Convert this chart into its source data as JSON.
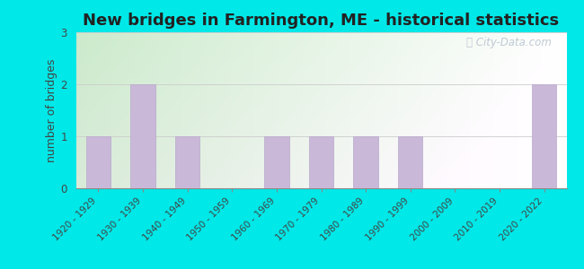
{
  "title": "New bridges in Farmington, ME - historical statistics",
  "categories": [
    "1920 - 1929",
    "1930 - 1939",
    "1940 - 1949",
    "1950 - 1959",
    "1960 - 1969",
    "1970 - 1979",
    "1980 - 1989",
    "1990 - 1999",
    "2000 - 2009",
    "2010 - 2019",
    "2020 - 2022"
  ],
  "values": [
    1,
    2,
    1,
    0,
    1,
    1,
    1,
    1,
    0,
    0,
    2
  ],
  "bar_color": "#c9b8d8",
  "bar_edge_color": "#b8a8cc",
  "ylabel": "number of bridges",
  "ylim": [
    0,
    3
  ],
  "yticks": [
    0,
    1,
    2,
    3
  ],
  "bg_outer": "#00e8e8",
  "bg_plot_topleft": "#cde8cc",
  "bg_plot_right": "#f0f8f0",
  "bg_plot_bottom": "#e8f5e8",
  "title_fontsize": 13,
  "axis_label_fontsize": 9,
  "tick_fontsize": 7.5,
  "watermark_text": "ⓘ City-Data.com",
  "watermark_color": "#b8c4d0"
}
